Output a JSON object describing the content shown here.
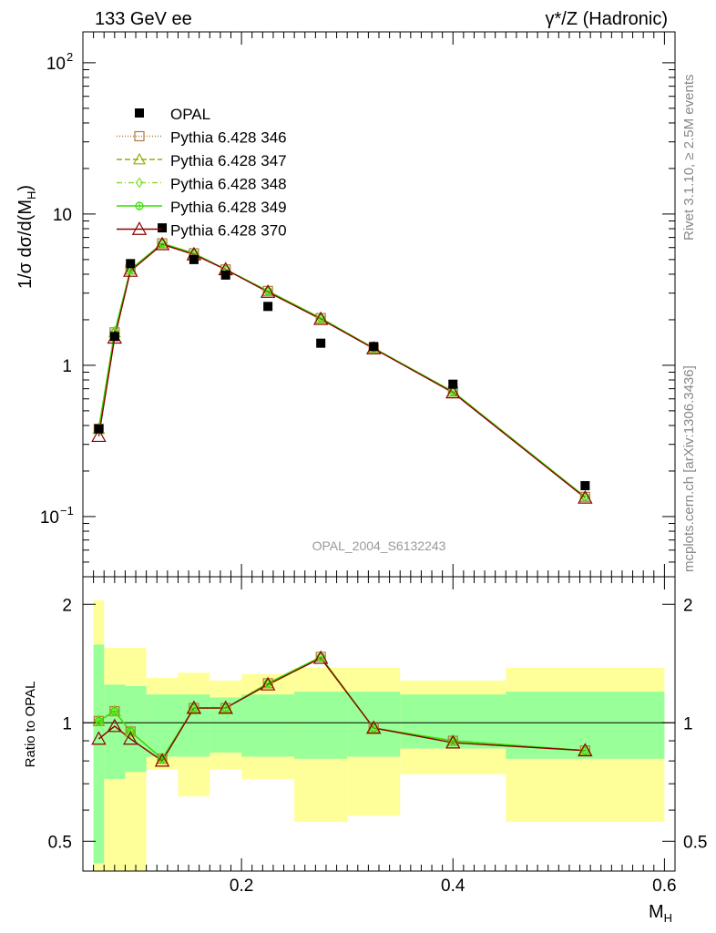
{
  "header": {
    "left": "133 GeV ee",
    "right": "γ*/Z (Hadronic)"
  },
  "side_labels": {
    "rivet": "Rivet 3.1.10, ≥ 2.5M events",
    "mcplots": "mcplots.cern.ch [arXiv:1306.3436]"
  },
  "watermark": "OPAL_2004_S6132243",
  "chart_data": [
    {
      "type": "scatter",
      "title": "",
      "ylabel": "1/σ dσ/d(M_H)",
      "yscale": "log",
      "xlim": [
        0.05,
        0.61
      ],
      "ylim": [
        0.04,
        160
      ],
      "yticks": [
        {
          "v": 0.1,
          "base": "10",
          "exp": "−1"
        },
        {
          "v": 1,
          "base": "1",
          "exp": ""
        },
        {
          "v": 10,
          "base": "10",
          "exp": ""
        },
        {
          "v": 100,
          "base": "10",
          "exp": "2"
        }
      ],
      "legend_position": "top-left",
      "data": {
        "name": "OPAL",
        "color": "#000000",
        "x": [
          0.065,
          0.08,
          0.095,
          0.125,
          0.155,
          0.185,
          0.225,
          0.275,
          0.325,
          0.4,
          0.525
        ],
        "y": [
          0.38,
          1.55,
          4.7,
          8.1,
          5.0,
          3.95,
          2.45,
          1.4,
          1.33,
          0.75,
          0.16
        ],
        "bin_edges": [
          0.06,
          0.07,
          0.09,
          0.11,
          0.14,
          0.17,
          0.2,
          0.25,
          0.3,
          0.35,
          0.45,
          0.6
        ]
      },
      "series": [
        {
          "name": "Pythia 6.428 346",
          "color": "#b07a3c",
          "marker": "square",
          "dash": "1,2",
          "y": [
            0.38,
            1.65,
            4.3,
            6.4,
            5.5,
            4.3,
            3.1,
            2.05,
            1.3,
            0.67,
            0.135
          ]
        },
        {
          "name": "Pythia 6.428 347",
          "color": "#8cb400",
          "marker": "triangle",
          "dash": "6,3",
          "y": [
            0.38,
            1.65,
            4.3,
            6.4,
            5.5,
            4.3,
            3.1,
            2.05,
            1.3,
            0.67,
            0.135
          ]
        },
        {
          "name": "Pythia 6.428 348",
          "color": "#88dd33",
          "marker": "diamond",
          "dash": "6,3,1,3",
          "y": [
            0.38,
            1.65,
            4.3,
            6.4,
            5.5,
            4.3,
            3.1,
            2.05,
            1.3,
            0.67,
            0.135
          ]
        },
        {
          "name": "Pythia 6.428 349",
          "color": "#33dd00",
          "marker": "circle-plus",
          "dash": "",
          "y": [
            0.38,
            1.65,
            4.3,
            6.4,
            5.5,
            4.3,
            3.1,
            2.05,
            1.3,
            0.67,
            0.135
          ]
        },
        {
          "name": "Pythia 6.428 370",
          "color": "#8b0000",
          "marker": "open-triangle",
          "dash": "",
          "y": [
            0.34,
            1.52,
            4.2,
            6.3,
            5.4,
            4.3,
            3.05,
            2.02,
            1.29,
            0.66,
            0.133
          ]
        }
      ]
    },
    {
      "type": "line",
      "title": "",
      "xlabel": "M_H",
      "ylabel": "Ratio to OPAL",
      "yscale": "log",
      "xlim": [
        0.05,
        0.61
      ],
      "ylim": [
        0.42,
        2.35
      ],
      "xticks": [
        0.2,
        0.4,
        0.6
      ],
      "yticks": [
        0.5,
        1,
        2
      ],
      "x": [
        0.065,
        0.08,
        0.095,
        0.125,
        0.155,
        0.185,
        0.225,
        0.275,
        0.325,
        0.4,
        0.525
      ],
      "bands": {
        "bin_edges": [
          0.06,
          0.07,
          0.09,
          0.11,
          0.14,
          0.17,
          0.2,
          0.25,
          0.3,
          0.35,
          0.45,
          0.6
        ],
        "inner": {
          "color": "#99ff99",
          "lo": [
            0.44,
            0.72,
            0.75,
            0.82,
            0.82,
            0.84,
            0.82,
            0.81,
            0.82,
            0.86,
            0.81
          ],
          "hi": [
            1.58,
            1.25,
            1.24,
            1.18,
            1.18,
            1.16,
            1.18,
            1.2,
            1.2,
            1.18,
            1.2
          ]
        },
        "outer": {
          "color": "#ffff99",
          "lo": [
            0.36,
            0.4,
            0.38,
            0.76,
            0.65,
            0.76,
            0.72,
            0.56,
            0.58,
            0.74,
            0.56
          ],
          "hi": [
            2.05,
            1.55,
            1.55,
            1.3,
            1.34,
            1.28,
            1.33,
            1.38,
            1.38,
            1.28,
            1.38
          ]
        }
      },
      "series": [
        {
          "name": "Pythia 6.428 346",
          "color": "#b07a3c",
          "marker": "square",
          "dash": "1,2",
          "y": [
            1.01,
            1.07,
            0.95,
            0.81,
            1.09,
            1.09,
            1.26,
            1.47,
            0.97,
            0.9,
            0.85
          ]
        },
        {
          "name": "Pythia 6.428 347",
          "color": "#8cb400",
          "marker": "triangle",
          "dash": "6,3",
          "y": [
            1.01,
            1.07,
            0.95,
            0.81,
            1.09,
            1.09,
            1.26,
            1.47,
            0.97,
            0.9,
            0.85
          ]
        },
        {
          "name": "Pythia 6.428 348",
          "color": "#88dd33",
          "marker": "diamond",
          "dash": "6,3,1,3",
          "y": [
            1.01,
            1.07,
            0.95,
            0.81,
            1.09,
            1.09,
            1.26,
            1.47,
            0.97,
            0.9,
            0.85
          ]
        },
        {
          "name": "Pythia 6.428 349",
          "color": "#33dd00",
          "marker": "circle-plus",
          "dash": "",
          "y": [
            1.01,
            1.07,
            0.95,
            0.81,
            1.09,
            1.09,
            1.26,
            1.47,
            0.97,
            0.9,
            0.85
          ]
        },
        {
          "name": "Pythia 6.428 370",
          "color": "#8b0000",
          "marker": "open-triangle",
          "dash": "",
          "y": [
            0.91,
            0.98,
            0.91,
            0.8,
            1.09,
            1.09,
            1.25,
            1.46,
            0.97,
            0.89,
            0.85
          ]
        }
      ]
    }
  ]
}
